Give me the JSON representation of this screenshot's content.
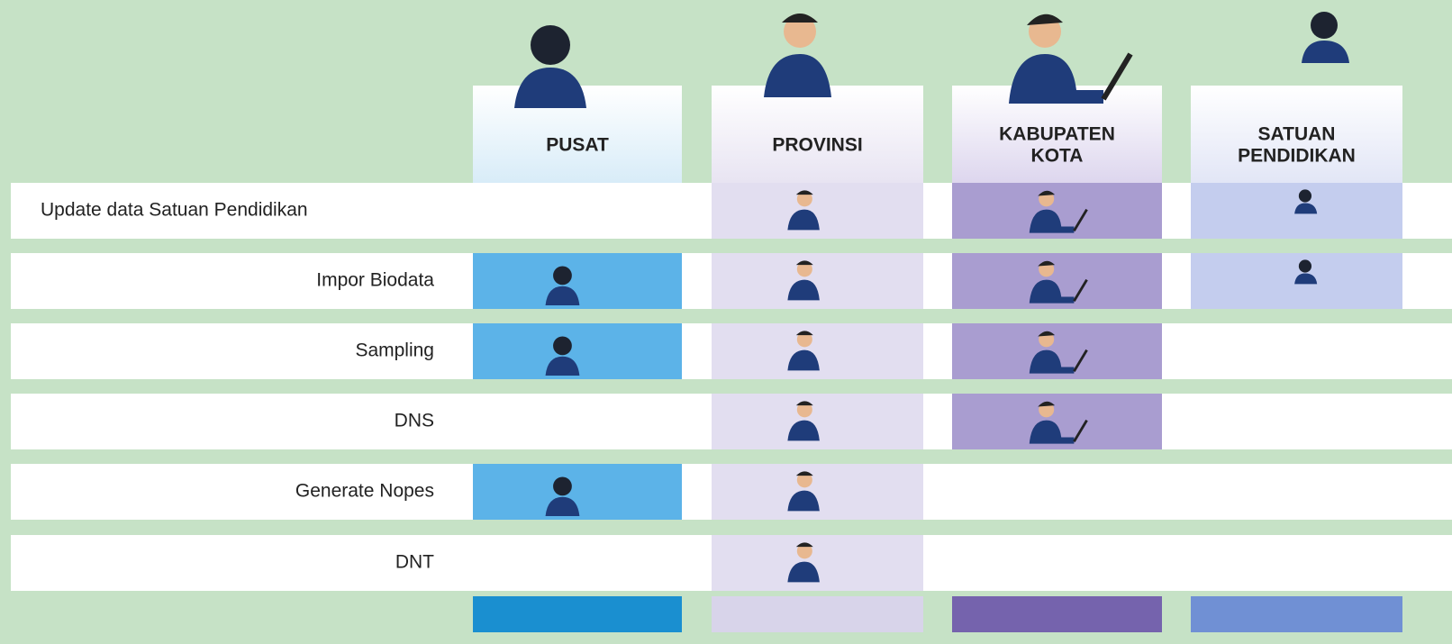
{
  "columns": [
    {
      "label": [
        "PUSAT"
      ]
    },
    {
      "label": [
        "PROVINSI"
      ]
    },
    {
      "label": [
        "KABUPATEN",
        "KOTA"
      ]
    },
    {
      "label": [
        "SATUAN",
        "PENDIDIKAN"
      ]
    }
  ],
  "rows": [
    {
      "label": "Update data Satuan Pendidikan",
      "cells": [
        false,
        true,
        true,
        true
      ]
    },
    {
      "label": "Impor Biodata",
      "cells": [
        true,
        true,
        true,
        true
      ]
    },
    {
      "label": "Sampling",
      "cells": [
        true,
        true,
        true,
        false
      ]
    },
    {
      "label": "DNS",
      "cells": [
        false,
        true,
        true,
        false
      ]
    },
    {
      "label": "Generate Nopes",
      "cells": [
        true,
        true,
        false,
        false
      ]
    },
    {
      "label": "DNT",
      "cells": [
        false,
        true,
        false,
        false
      ]
    }
  ]
}
